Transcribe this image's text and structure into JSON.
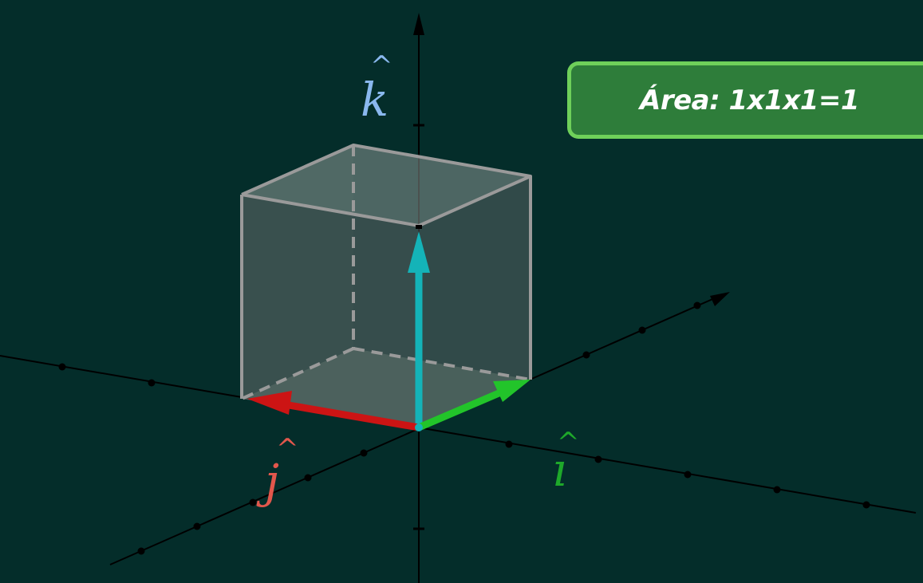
{
  "area_box": {
    "text": "Área: 1x1x1=1"
  },
  "labels": {
    "k": {
      "letter": "k",
      "hat": "^",
      "color": "#8ab8ee"
    },
    "j": {
      "letter": "j",
      "hat": "^",
      "color": "#e2574c"
    },
    "i": {
      "letter": "ı",
      "hat": "^",
      "color": "#1ea82a"
    }
  },
  "colors": {
    "background": "#042d2a",
    "axis": "#000000",
    "k_vector": "#14b3b8",
    "j_vector": "#cc1414",
    "i_vector": "#22c42a",
    "cube_edge": "#9a9a9a",
    "box_fill": "#2e7d3a",
    "box_border": "#6fd05a"
  }
}
